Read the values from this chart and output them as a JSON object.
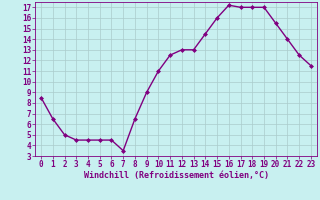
{
  "x": [
    0,
    1,
    2,
    3,
    4,
    5,
    6,
    7,
    8,
    9,
    10,
    11,
    12,
    13,
    14,
    15,
    16,
    17,
    18,
    19,
    20,
    21,
    22,
    23
  ],
  "y": [
    8.5,
    6.5,
    5.0,
    4.5,
    4.5,
    4.5,
    4.5,
    3.5,
    6.5,
    9.0,
    11.0,
    12.5,
    13.0,
    13.0,
    14.5,
    16.0,
    17.2,
    17.0,
    17.0,
    17.0,
    15.5,
    14.0,
    12.5,
    11.5
  ],
  "line_color": "#800080",
  "marker": "D",
  "marker_size": 2.0,
  "bg_color": "#c8f0f0",
  "grid_color": "#aacccc",
  "xlabel": "Windchill (Refroidissement éolien,°C)",
  "ylim": [
    3,
    17.5
  ],
  "xlim": [
    -0.5,
    23.5
  ],
  "yticks": [
    3,
    4,
    5,
    6,
    7,
    8,
    9,
    10,
    11,
    12,
    13,
    14,
    15,
    16,
    17
  ],
  "xticks": [
    0,
    1,
    2,
    3,
    4,
    5,
    6,
    7,
    8,
    9,
    10,
    11,
    12,
    13,
    14,
    15,
    16,
    17,
    18,
    19,
    20,
    21,
    22,
    23
  ],
  "axis_color": "#800080",
  "font_size_axis": 6.0,
  "font_size_tick": 5.5,
  "line_width": 1.0
}
